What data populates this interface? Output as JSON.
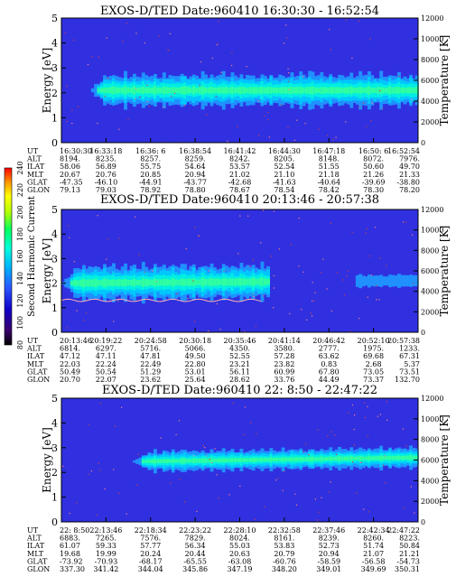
{
  "chart_data": [
    {
      "type": "heatmap",
      "title": "EXOS-D/TED   Date:960410   16:30:30 - 16:52:54",
      "ylabel": "Energy [eV]",
      "y2label": "Temperature [K]",
      "ylim": [
        0,
        5
      ],
      "y2lim": [
        0,
        12000
      ],
      "yticks": [
        "0",
        "1",
        "2",
        "3",
        "4",
        "5"
      ],
      "y2ticks": [
        "0",
        "2000",
        "4000",
        "6000",
        "8000",
        "10000",
        "12000"
      ],
      "band": {
        "center_start": 2.1,
        "center_end": 2.1,
        "halfwidth": 0.55,
        "onset": 0.08,
        "gap_after": null,
        "resume": null
      },
      "orbit_rows": [
        "UT",
        "ALT",
        "ILAT",
        "MLT",
        "GLAT",
        "GLON"
      ],
      "orbit_cols": [
        [
          "16:30:30",
          "8194.",
          "58.06",
          "20.67",
          "-47.35",
          "79.13"
        ],
        [
          "16:33:18",
          "8235.",
          "56.89",
          "20.76",
          "-46.10",
          "79.03"
        ],
        [
          "16:36: 6",
          "8257.",
          "55.75",
          "20.85",
          "-44.91",
          "78.92"
        ],
        [
          "16:38:54",
          "8259.",
          "54.64",
          "20.94",
          "-43.77",
          "78.80"
        ],
        [
          "16:41:42",
          "8242.",
          "53.57",
          "21.02",
          "-42.68",
          "78.67"
        ],
        [
          "16:44:30",
          "8205.",
          "52.54",
          "21.10",
          "-41.63",
          "78.54"
        ],
        [
          "16:47:18",
          "8148.",
          "51.55",
          "21.18",
          "-40.64",
          "78.42"
        ],
        [
          "16:50: 6",
          "8072.",
          "50.60",
          "21.26",
          "-39.69",
          "78.30"
        ],
        [
          "16:52:54",
          "7976.",
          "49.70",
          "21.33",
          "-38.80",
          "78.20"
        ]
      ]
    },
    {
      "type": "heatmap",
      "title": "EXOS-D/TED   Date:960410   20:13:46 - 20:57:38",
      "ylabel": "Energy [eV]",
      "y2label": "Temperature [K]",
      "ylim": [
        0,
        5
      ],
      "y2lim": [
        0,
        12000
      ],
      "yticks": [
        "0",
        "1",
        "2",
        "3",
        "4",
        "5"
      ],
      "y2ticks": [
        "0",
        "2000",
        "4000",
        "6000",
        "8000",
        "10000",
        "12000"
      ],
      "band": {
        "center_start": 2.0,
        "center_end": 2.1,
        "halfwidth": 0.6,
        "onset": 0.0,
        "gap_after": 0.58,
        "resume": 0.82
      },
      "orbit_rows": [
        "UT",
        "ALT",
        "ILAT",
        "MLT",
        "GLAT",
        "GLON"
      ],
      "orbit_cols": [
        [
          "20:13:46",
          "6814.",
          "47.12",
          "22.03",
          "50.49",
          "20.70"
        ],
        [
          "20:19:22",
          "6297.",
          "47.11",
          "22.24",
          "50.54",
          "22.07"
        ],
        [
          "20:24:58",
          "5716.",
          "47.81",
          "22.49",
          "51.29",
          "23.62"
        ],
        [
          "20:30:18",
          "5066.",
          "49.50",
          "22.80",
          "53.01",
          "25.64"
        ],
        [
          "20:35:46",
          "4350.",
          "52.55",
          "23.21",
          "56.11",
          "28.62"
        ],
        [
          "20:41:14",
          "3580.",
          "57.28",
          "23.82",
          "60.99",
          "33.76"
        ],
        [
          "20:46:42",
          "2777.",
          "63.62",
          "0.83",
          "67.80",
          "44.49"
        ],
        [
          "20:52:10",
          "1975.",
          "69.68",
          "2.68",
          "73.05",
          "73.37"
        ],
        [
          "20:57:38",
          "1233.",
          "67.31",
          "5.37",
          "73.51",
          "132.70"
        ]
      ]
    },
    {
      "type": "heatmap",
      "title": "EXOS-D/TED   Date:960410   22: 8:50 - 22:47:22",
      "ylabel": "Energy [eV]",
      "y2label": "Temperature [K]",
      "ylim": [
        0,
        5
      ],
      "y2lim": [
        0,
        12000
      ],
      "yticks": [
        "0",
        "1",
        "2",
        "3",
        "4",
        "5"
      ],
      "y2ticks": [
        "0",
        "2000",
        "4000",
        "6000",
        "8000",
        "10000",
        "12000"
      ],
      "band": {
        "center_start": 2.4,
        "center_end": 2.6,
        "halfwidth": 0.35,
        "onset": 0.2,
        "gap_after": null,
        "resume": null
      },
      "orbit_rows": [
        "UT",
        "ALT",
        "ILAT",
        "MLT",
        "GLAT",
        "GLON"
      ],
      "orbit_cols": [
        [
          "22: 8:50",
          "6883.",
          "61.07",
          "19.68",
          "-73.92",
          "337.30"
        ],
        [
          "22:13:46",
          "7265.",
          "59.33",
          "19.99",
          "-70.93",
          "341.42"
        ],
        [
          "22:18:34",
          "7576.",
          "57.77",
          "20.24",
          "-68.17",
          "344.04"
        ],
        [
          "22:23:22",
          "7829.",
          "56.34",
          "20.44",
          "-65.55",
          "345.86"
        ],
        [
          "22:28:10",
          "8024.",
          "55.03",
          "20.63",
          "-63.08",
          "347.19"
        ],
        [
          "22:32:58",
          "8161.",
          "53.83",
          "20.79",
          "-60.76",
          "348.20"
        ],
        [
          "22:37:46",
          "8239.",
          "52.73",
          "20.94",
          "-58.59",
          "349.01"
        ],
        [
          "22:42:34",
          "8260.",
          "51.74",
          "21.07",
          "-56.58",
          "349.69"
        ],
        [
          "22:47:22",
          "8223.",
          "50.84",
          "21.21",
          "-54.73",
          "350.31"
        ]
      ]
    }
  ],
  "colorbar": {
    "label": "Second Harmonic Current",
    "ticks": [
      "80",
      "100",
      "120",
      "140",
      "160",
      "180",
      "200",
      "220",
      "240"
    ],
    "range": [
      80,
      240
    ],
    "colors": [
      "#000000",
      "#3a006a",
      "#1200c8",
      "#2a55ff",
      "#00b4ff",
      "#00ffd8",
      "#00ff60",
      "#b4ff00",
      "#ffff00",
      "#ff9600",
      "#ff0000"
    ]
  }
}
